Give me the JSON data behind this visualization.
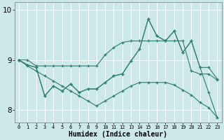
{
  "xlabel": "Humidex (Indice chaleur)",
  "bg_color": "#cce8e8",
  "line_color": "#2e7d6e",
  "grid_color": "#ffffff",
  "xmin": -0.5,
  "xmax": 23.5,
  "ymin": 7.75,
  "ymax": 10.15,
  "yticks": [
    8,
    9,
    10
  ],
  "ytick_labels": [
    "8",
    "9",
    "10"
  ],
  "xticks": [
    0,
    1,
    2,
    3,
    4,
    5,
    6,
    7,
    8,
    9,
    10,
    11,
    12,
    13,
    14,
    15,
    16,
    17,
    18,
    19,
    20,
    21,
    22,
    23
  ],
  "line_upper_env": [
    9.0,
    9.0,
    8.88,
    8.88,
    8.88,
    8.88,
    8.88,
    8.88,
    8.88,
    8.88,
    9.1,
    9.25,
    9.35,
    9.38,
    9.38,
    9.38,
    9.38,
    9.38,
    9.38,
    9.38,
    8.78,
    8.72,
    8.72,
    8.6
  ],
  "line_lower_env": [
    9.0,
    8.88,
    8.78,
    8.68,
    8.58,
    8.48,
    8.38,
    8.28,
    8.18,
    8.08,
    8.18,
    8.28,
    8.38,
    8.48,
    8.55,
    8.55,
    8.55,
    8.55,
    8.5,
    8.4,
    8.3,
    8.15,
    8.05,
    7.85
  ],
  "line_zigzag_hi": [
    9.0,
    8.9,
    8.85,
    8.28,
    8.48,
    8.38,
    8.52,
    8.35,
    8.42,
    8.42,
    8.55,
    8.68,
    8.72,
    8.98,
    9.22,
    9.82,
    9.48,
    9.38,
    9.58,
    9.15,
    9.38,
    8.85,
    8.85,
    8.62
  ],
  "line_zigzag_lo": [
    9.0,
    8.9,
    8.85,
    8.28,
    8.48,
    8.38,
    8.52,
    8.35,
    8.42,
    8.42,
    8.55,
    8.68,
    8.72,
    8.98,
    9.22,
    9.82,
    9.48,
    9.38,
    9.58,
    9.15,
    9.38,
    8.85,
    8.35,
    7.85
  ]
}
